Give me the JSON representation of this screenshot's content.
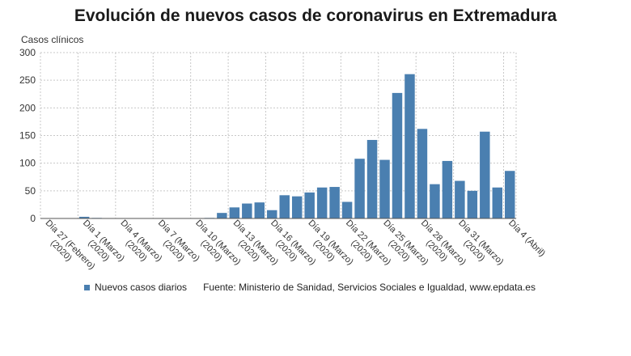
{
  "colors": {
    "bar": "#4a7fb0",
    "grid": "#c8c8c8",
    "axis": "#555555"
  },
  "chart_data": {
    "type": "bar",
    "title": "Evolución de nuevos casos de coronavirus en Extremadura",
    "ylabel": "Casos clínicos",
    "ylim": [
      0,
      300
    ],
    "yticks": [
      0,
      50,
      100,
      150,
      200,
      250,
      300
    ],
    "grid": true,
    "legend_position": "bottom",
    "tick_labels": [
      {
        "index": 0,
        "lines": [
          "Día 27 (Febrero)",
          "(2020)"
        ]
      },
      {
        "index": 3,
        "lines": [
          "Día 1 (Marzo)",
          "(2020)"
        ]
      },
      {
        "index": 6,
        "lines": [
          "Día 4 (Marzo)",
          "(2020)"
        ]
      },
      {
        "index": 9,
        "lines": [
          "Día 7 (Marzo)",
          "(2020)"
        ]
      },
      {
        "index": 12,
        "lines": [
          "Día 10 (Marzo)",
          "(2020)"
        ]
      },
      {
        "index": 15,
        "lines": [
          "Día 13 (Marzo)",
          "(2020)"
        ]
      },
      {
        "index": 18,
        "lines": [
          "Día 16 (Marzo)",
          "(2020)"
        ]
      },
      {
        "index": 21,
        "lines": [
          "Día 19 (Marzo)",
          "(2020)"
        ]
      },
      {
        "index": 24,
        "lines": [
          "Día 22 (Marzo)",
          "(2020)"
        ]
      },
      {
        "index": 27,
        "lines": [
          "Día 25 (Marzo)",
          "(2020)"
        ]
      },
      {
        "index": 30,
        "lines": [
          "Día 28 (Marzo)",
          "(2020)"
        ]
      },
      {
        "index": 33,
        "lines": [
          "Día 31 (Marzo)",
          "(2020)"
        ]
      },
      {
        "index": 37,
        "lines": [
          "Día 4 (Abril)"
        ]
      }
    ],
    "series": [
      {
        "name": "Nuevos casos diarios",
        "values": [
          0,
          0,
          0,
          3,
          1,
          0,
          0,
          0,
          0,
          0,
          0,
          0,
          0,
          1,
          10,
          20,
          27,
          29,
          15,
          42,
          40,
          47,
          56,
          57,
          30,
          108,
          142,
          106,
          227,
          261,
          162,
          62,
          104,
          68,
          50,
          157,
          56,
          86
        ]
      }
    ]
  },
  "legend": {
    "series_label": "Nuevos casos diarios",
    "source": "Fuente: Ministerio de Sanidad, Servicios Sociales e Igualdad, www.epdata.es"
  }
}
